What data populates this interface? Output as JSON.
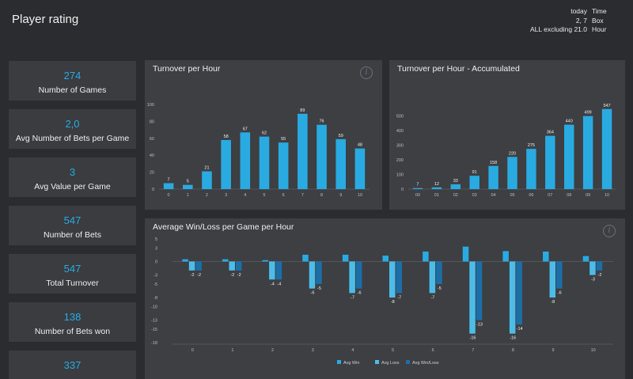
{
  "header": {
    "title": "Player rating",
    "filters": [
      {
        "value": "today",
        "label": "Time"
      },
      {
        "value": "2, 7",
        "label": "Box"
      },
      {
        "value": "ALL excluding 21.0",
        "label": "Hour"
      }
    ]
  },
  "kpis": [
    {
      "value": "274",
      "label": "Number of Games"
    },
    {
      "value": "2,0",
      "label": "Avg Number of Bets per Game"
    },
    {
      "value": "3",
      "label": "Avg Value per Game"
    },
    {
      "value": "547",
      "label": "Number of Bets"
    },
    {
      "value": "547",
      "label": "Total Turnover"
    },
    {
      "value": "138",
      "label": "Number of Bets won"
    },
    {
      "value": "337",
      "label": ""
    }
  ],
  "colors": {
    "bar": "#29abe2",
    "win": "#29abe2",
    "loss": "#4dbde8",
    "winloss": "#1b6fa8",
    "background": "#2a2c30",
    "panel": "#3d3f43"
  },
  "chart_data": [
    {
      "type": "bar",
      "title": "Turnover per Hour",
      "categories": [
        "0",
        "1",
        "2",
        "3",
        "4",
        "5",
        "6",
        "7",
        "8",
        "9",
        "10"
      ],
      "values": [
        7,
        5,
        21,
        58,
        67,
        62,
        55,
        89,
        76,
        59,
        48
      ],
      "yticks": [
        0,
        20,
        40,
        60,
        80,
        100
      ],
      "ylim": [
        0,
        100
      ],
      "grid": false
    },
    {
      "type": "bar",
      "title": "Turnover per Hour - Accumulated",
      "categories": [
        "00",
        "01",
        "02",
        "03",
        "04",
        "05",
        "06",
        "07",
        "08",
        "09",
        "10"
      ],
      "values": [
        7,
        12,
        33,
        91,
        158,
        220,
        275,
        364,
        440,
        499,
        547
      ],
      "yticks": [
        0,
        100,
        200,
        300,
        400,
        500
      ],
      "ylim": [
        0,
        600
      ],
      "grid": false
    },
    {
      "type": "bar",
      "title": "Average Win/Loss per Game per Hour",
      "categories": [
        "0",
        "1",
        "2",
        "3",
        "4",
        "5",
        "6",
        "7",
        "8",
        "9",
        "10"
      ],
      "series": [
        {
          "name": "Avg Win",
          "values": [
            0.5,
            0.5,
            0.3,
            1.5,
            1.5,
            1.3,
            2.2,
            3.3,
            2.3,
            2.2,
            1.2
          ]
        },
        {
          "name": "Avg Loss",
          "values": [
            -2,
            -2,
            -4,
            -6,
            -7,
            -8,
            -7,
            -16,
            -16,
            -8,
            -3
          ]
        },
        {
          "name": "Avg Win/Loss",
          "values": [
            -2,
            -2,
            -4,
            -5,
            -6,
            -7,
            -5,
            -13,
            -14,
            -6,
            -2
          ]
        }
      ],
      "data_labels": [
        [
          "-2",
          "-2",
          "-4",
          "-6",
          "-7",
          "-8",
          "-7",
          "-16",
          "-16",
          "-8",
          "-3"
        ],
        [
          "-2",
          "-2",
          "-4",
          "-5",
          "-6",
          "-7",
          "-5",
          "-13",
          "-14",
          "-6",
          "-2"
        ]
      ],
      "yticks": [
        5,
        3,
        0,
        -3,
        -5,
        -8,
        -10,
        -13,
        -15,
        -18
      ],
      "ylim": [
        -18,
        5
      ],
      "legend": "bottom-center",
      "grid": false
    }
  ]
}
